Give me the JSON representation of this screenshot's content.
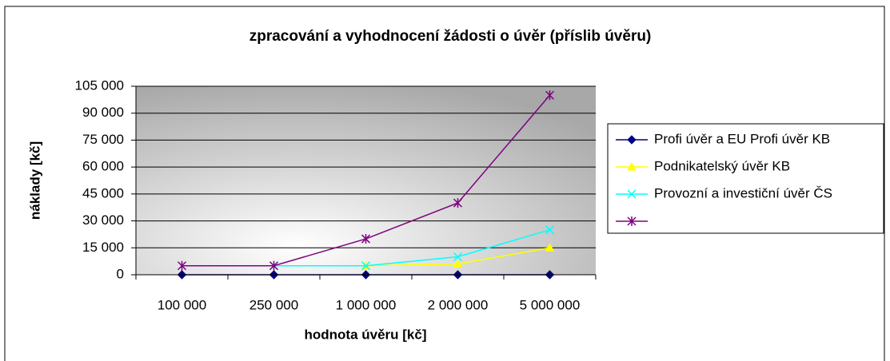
{
  "chart_data": {
    "type": "line",
    "title": "zpracování a vyhodnocení žádosti o úvěr (příslib úvěru)",
    "x_label": "hodnota úvěru [kč]",
    "y_label": "náklady [kč]",
    "categories": [
      "100 000",
      "250 000",
      "1 000 000",
      "2 000 000",
      "5 000 000"
    ],
    "ylim": [
      0,
      105000
    ],
    "yticks": [
      0,
      {
        "value": 15000,
        "label": "15 000"
      },
      {
        "value": 30000,
        "label": "30 000"
      },
      {
        "value": 45000,
        "label": "45 000"
      },
      {
        "value": 60000,
        "label": "60 000"
      },
      {
        "value": 75000,
        "label": "75 000"
      },
      {
        "value": 90000,
        "label": "90 000"
      },
      {
        "value": 105000,
        "label": "105 000"
      }
    ],
    "grid": true,
    "legend": "right",
    "series": [
      {
        "name": "Profi úvěr a EU Profi úvěr KB",
        "color": "#000080",
        "marker": "diamond",
        "values": [
          0,
          0,
          0,
          0,
          0
        ]
      },
      {
        "name": "Podnikatelský úvěr KB",
        "color": "#ffff00",
        "marker": "triangle",
        "values": [
          null,
          null,
          5000,
          6000,
          15000
        ]
      },
      {
        "name": "Provozní a investiční úvěr ČS",
        "color": "#00ffff",
        "marker": "x",
        "values": [
          null,
          5000,
          5000,
          10000,
          25000
        ]
      },
      {
        "name": null,
        "color": "#800080",
        "marker": "star",
        "values": [
          5000,
          5000,
          20000,
          40000,
          100000
        ]
      }
    ]
  }
}
